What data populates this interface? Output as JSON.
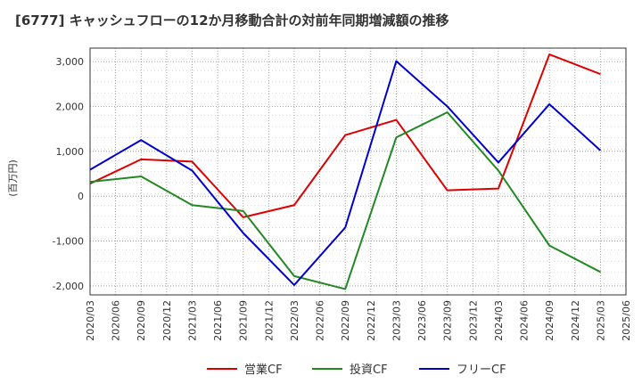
{
  "chart_data": {
    "type": "line",
    "title": "[6777]  キャッシュフローの12か月移動合計の対前年同期増減額の推移",
    "ylabel": "(百万円)",
    "xlabel": "",
    "ylim": [
      -2200,
      3300
    ],
    "yticks": [
      -2000,
      -1000,
      0,
      1000,
      2000,
      3000
    ],
    "ytick_labels": [
      "-2,000",
      "-1,000",
      "0",
      "1,000",
      "2,000",
      "3,000"
    ],
    "x_tick_labels": [
      "2020/03",
      "2020/06",
      "2020/09",
      "2020/12",
      "2021/03",
      "2021/06",
      "2021/09",
      "2021/12",
      "2022/03",
      "2022/06",
      "2022/09",
      "2022/12",
      "2023/03",
      "2023/06",
      "2023/09",
      "2023/12",
      "2024/03",
      "2024/06",
      "2024/09",
      "2024/12",
      "2025/03",
      "2025/06"
    ],
    "grid": true,
    "legend_position": "bottom",
    "series": [
      {
        "name": "営業CF",
        "color": "#dd0000",
        "points": [
          [
            "2020/03",
            280
          ],
          [
            "2020/09",
            820
          ],
          [
            "2021/03",
            770
          ],
          [
            "2021/09",
            -470
          ],
          [
            "2022/03",
            -200
          ],
          [
            "2022/09",
            1360
          ],
          [
            "2023/03",
            1700
          ],
          [
            "2023/09",
            130
          ],
          [
            "2024/03",
            170
          ],
          [
            "2024/09",
            3160
          ],
          [
            "2025/03",
            2720
          ]
        ]
      },
      {
        "name": "投資CF",
        "color": "#228822",
        "points": [
          [
            "2020/03",
            320
          ],
          [
            "2020/09",
            440
          ],
          [
            "2021/03",
            -200
          ],
          [
            "2021/09",
            -330
          ],
          [
            "2022/03",
            -1780
          ],
          [
            "2022/09",
            -2070
          ],
          [
            "2023/03",
            1310
          ],
          [
            "2023/09",
            1870
          ],
          [
            "2024/03",
            570
          ],
          [
            "2024/09",
            -1100
          ],
          [
            "2025/03",
            -1690
          ]
        ]
      },
      {
        "name": "フリーCF",
        "color": "#0000cc",
        "points": [
          [
            "2020/03",
            590
          ],
          [
            "2020/09",
            1250
          ],
          [
            "2021/03",
            570
          ],
          [
            "2021/09",
            -820
          ],
          [
            "2022/03",
            -1980
          ],
          [
            "2022/09",
            -700
          ],
          [
            "2023/03",
            3010
          ],
          [
            "2023/09",
            2000
          ],
          [
            "2024/03",
            750
          ],
          [
            "2024/09",
            2050
          ],
          [
            "2025/03",
            1020
          ]
        ]
      }
    ]
  }
}
